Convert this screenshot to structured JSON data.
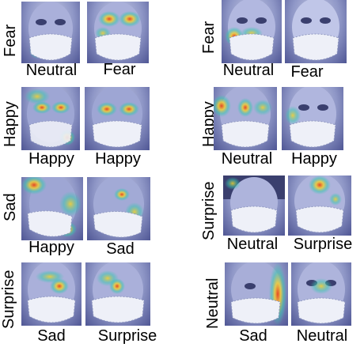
{
  "rows": [
    {
      "left": {
        "row_label": "Fear",
        "a": "Neutral",
        "b": "Fear"
      },
      "right": {
        "row_label": "Fear",
        "a": "Neutral",
        "b": "Fear"
      }
    },
    {
      "left": {
        "row_label": "Happy",
        "a": "Happy",
        "b": "Happy"
      },
      "right": {
        "row_label": "Happy",
        "a": "Neutral",
        "b": "Happy"
      }
    },
    {
      "left": {
        "row_label": "Sad",
        "a": "Happy",
        "b": "Sad"
      },
      "right": {
        "row_label": "Surprise",
        "a": "Neutral",
        "b": "Surprise"
      }
    },
    {
      "left": {
        "row_label": "Surprise",
        "a": "Sad",
        "b": "Surprise"
      },
      "right": {
        "row_label": "Neutral",
        "a": "Sad",
        "b": "Neutral"
      }
    }
  ],
  "colors": {
    "face_base": "#9aa2d2",
    "mask": "#eef0f8",
    "heat_hot": "#e8401c",
    "heat_warm": "#f4d02c",
    "heat_cool": "#38c6b0"
  }
}
